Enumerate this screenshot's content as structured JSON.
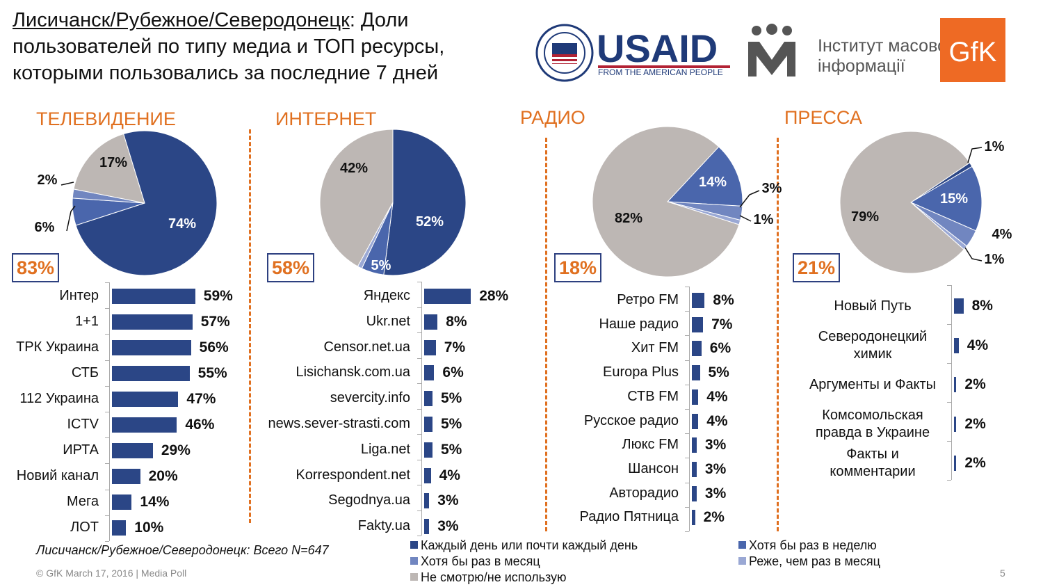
{
  "title": {
    "underlined": "Лисичанск/Рубежное/Северодонецк",
    "rest": ": Доли пользователей по типу медиа и ТОП ресурсы, которыми пользовались за последние 7 дней"
  },
  "logos": {
    "usaid": "USAID",
    "usaid_sub": "FROM THE AMERICAN PEOPLE",
    "seal_text": "UNITED STATES AGENCY INTERNATIONAL DEVELOPMENT",
    "imi_line1": "Інститут масової",
    "imi_line2": "інформації",
    "gfk": "GfK"
  },
  "colors": {
    "daily": "#2b4686",
    "weekly": "#4a66ac",
    "monthly": "#7186c0",
    "rarely": "#9aa8d4",
    "never": "#bdb7b4",
    "accent": "#e07020"
  },
  "chart_data": [
    {
      "type": "pie",
      "title": "ТЕЛЕВИДЕНИЕ",
      "total": "83%",
      "slices": [
        {
          "category": "daily",
          "value": 74,
          "label": "74%"
        },
        {
          "category": "weekly",
          "value": 6,
          "label": "6%"
        },
        {
          "category": "monthly",
          "value": 2,
          "label": "2%"
        },
        {
          "category": "never",
          "value": 17,
          "label": "17%"
        }
      ]
    },
    {
      "type": "bar",
      "orientation": "horizontal",
      "categories": [
        "Интер",
        "1+1",
        "ТРК Украина",
        "СТБ",
        "112 Украина",
        "ICTV",
        "ИРТА",
        "Новий канал",
        "Мега",
        "ЛОТ"
      ],
      "values": [
        59,
        57,
        56,
        55,
        47,
        46,
        29,
        20,
        14,
        10
      ],
      "labels": [
        "59%",
        "57%",
        "56%",
        "55%",
        "47%",
        "46%",
        "29%",
        "20%",
        "14%",
        "10%"
      ]
    },
    {
      "type": "pie",
      "title": "ИНТЕРНЕТ",
      "total": "58%",
      "slices": [
        {
          "category": "daily",
          "value": 52,
          "label": "52%"
        },
        {
          "category": "weekly",
          "value": 5,
          "label": "5%"
        },
        {
          "category": "rarely",
          "value": 1,
          "label": ""
        },
        {
          "category": "never",
          "value": 42,
          "label": "42%"
        }
      ]
    },
    {
      "type": "bar",
      "orientation": "horizontal",
      "categories": [
        "Яндекс",
        "Ukr.net",
        "Censor.net.ua",
        "Lisichansk.com.ua",
        "severcity.info",
        "news.sever-strasti.com",
        "Liga.net",
        "Korrespondent.net",
        "Segodnya.ua",
        "Fakty.ua"
      ],
      "values": [
        28,
        8,
        7,
        6,
        5,
        5,
        5,
        4,
        3,
        3
      ],
      "labels": [
        "28%",
        "8%",
        "7%",
        "6%",
        "5%",
        "5%",
        "5%",
        "4%",
        "3%",
        "3%"
      ]
    },
    {
      "type": "pie",
      "title": "РАДИО",
      "total": "18%",
      "slices": [
        {
          "category": "weekly",
          "value": 14,
          "label": "14%"
        },
        {
          "category": "monthly",
          "value": 3,
          "label": "3%"
        },
        {
          "category": "rarely",
          "value": 1,
          "label": "1%"
        },
        {
          "category": "never",
          "value": 82,
          "label": "82%"
        }
      ]
    },
    {
      "type": "bar",
      "orientation": "horizontal",
      "categories": [
        "Ретро FM",
        "Наше радио",
        "Хит FM",
        "Europa Plus",
        "СТВ FM",
        "Русское радио",
        "Люкс FM",
        "Шансон",
        "Авторадио",
        "Радио Пятница"
      ],
      "values": [
        8,
        7,
        6,
        5,
        4,
        4,
        3,
        3,
        3,
        2
      ],
      "labels": [
        "8%",
        "7%",
        "6%",
        "5%",
        "4%",
        "4%",
        "3%",
        "3%",
        "3%",
        "2%"
      ]
    },
    {
      "type": "pie",
      "title": "ПРЕССА",
      "total": "21%",
      "slices": [
        {
          "category": "daily",
          "value": 1,
          "label": "1%"
        },
        {
          "category": "weekly",
          "value": 15,
          "label": "15%"
        },
        {
          "category": "monthly",
          "value": 4,
          "label": "4%"
        },
        {
          "category": "rarely",
          "value": 1,
          "label": "1%"
        },
        {
          "category": "never",
          "value": 79,
          "label": "79%"
        }
      ]
    },
    {
      "type": "bar",
      "orientation": "horizontal",
      "categories": [
        "Новый Путь",
        "Северодонецкий химик",
        "Аргументы и Факты",
        "Комсомольская правда в Украине",
        "Факты и комментарии"
      ],
      "values": [
        8,
        4,
        2,
        2,
        2
      ],
      "labels": [
        "8%",
        "4%",
        "2%",
        "2%",
        "2%"
      ]
    }
  ],
  "legend": [
    {
      "category": "daily",
      "label": "Каждый день или почти каждый день"
    },
    {
      "category": "weekly",
      "label": "Хотя бы раз в неделю"
    },
    {
      "category": "monthly",
      "label": "Хотя бы раз в месяц"
    },
    {
      "category": "rarely",
      "label": "Реже, чем раз в месяц"
    },
    {
      "category": "never",
      "label": "Не смотрю/не использую"
    }
  ],
  "note": "Лисичанск/Рубежное/Северодонецк: Всего N=647",
  "footer": "© GfK March 17, 2016 | Media Poll",
  "page_number": "5"
}
